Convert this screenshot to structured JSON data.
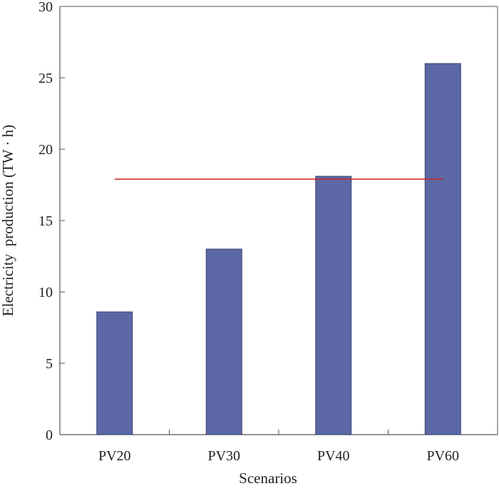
{
  "chart_data": {
    "type": "bar",
    "categories": [
      "PV20",
      "PV30",
      "PV40",
      "PV60"
    ],
    "values": [
      8.6,
      13.0,
      18.1,
      26.0
    ],
    "reference_line": {
      "value": 17.9,
      "color": "#d42020"
    },
    "xlabel": "Scenarios",
    "ylabel": "Electricity  production (TW · h)",
    "ylim": [
      0,
      30
    ],
    "yticks": [
      0,
      5,
      10,
      15,
      20,
      25,
      30
    ],
    "grid": false,
    "legend": "none",
    "colors": {
      "bar_fill": "#5b68a5",
      "bar_stroke": "#3a4470",
      "axis": "#555555"
    }
  }
}
